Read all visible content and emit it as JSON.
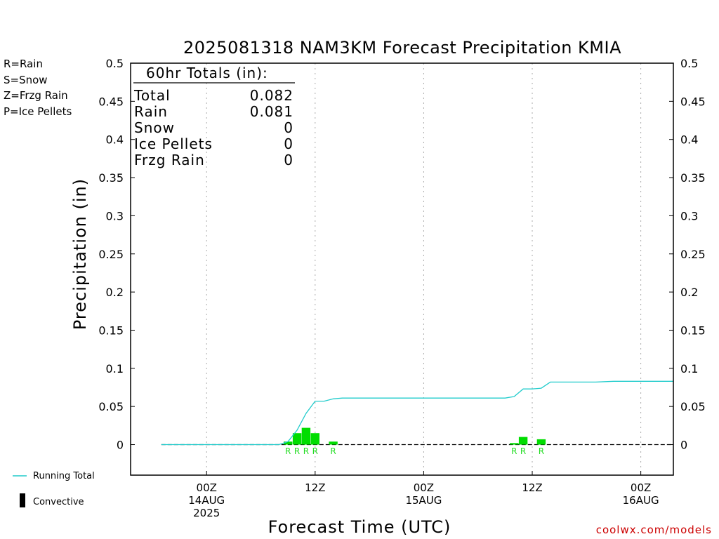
{
  "title": "2025081318 NAM3KM Forecast Precipitation KMIA",
  "credit": "coolwx.com/models",
  "ptype_legend": [
    {
      "code": "R",
      "label": "R=Rain",
      "color": "#22dd22"
    },
    {
      "code": "S",
      "label": "S=Snow",
      "color": "#3355ee"
    },
    {
      "code": "Z",
      "label": "Z=Frzg Rain",
      "color": "#ee8833"
    },
    {
      "code": "P",
      "label": "P=Ice Pellets",
      "color": "#ee1188"
    }
  ],
  "bottom_legend": {
    "running_total": "Running Total",
    "convective": "Convective",
    "running_total_color": "#22cccc",
    "bar_color": "#00dd00"
  },
  "totals_box": {
    "header": "60hr Totals (in):",
    "rows": [
      {
        "label": "Total",
        "value": "0.082"
      },
      {
        "label": "Rain",
        "value": "0.081"
      },
      {
        "label": "Snow",
        "value": "0"
      },
      {
        "label": "Ice Pellets",
        "value": "0"
      },
      {
        "label": "Frzg Rain",
        "value": "0"
      }
    ]
  },
  "chart_data": {
    "type": "bar",
    "ylabel": "Precipitation (in)",
    "xlabel": "Forecast Time (UTC)",
    "ylim": [
      -0.04,
      0.5
    ],
    "xlim_hours": [
      -8.4,
      51.6
    ],
    "yticks": [
      "0",
      "0.05",
      "0.1",
      "0.15",
      "0.2",
      "0.25",
      "0.3",
      "0.35",
      "0.4",
      "0.45",
      "0.5"
    ],
    "x_ticks": [
      {
        "hour": 0,
        "lines": [
          "00Z",
          "14AUG",
          "2025"
        ]
      },
      {
        "hour": 12,
        "lines": [
          "12Z"
        ]
      },
      {
        "hour": 24,
        "lines": [
          "00Z",
          "15AUG"
        ]
      },
      {
        "hour": 36,
        "lines": [
          "12Z"
        ]
      },
      {
        "hour": 48,
        "lines": [
          "00Z",
          "16AUG"
        ]
      }
    ],
    "grid_x": true,
    "series": [
      {
        "name": "Running Total",
        "kind": "line",
        "x": [
          -5,
          8,
          9,
          10,
          11,
          12,
          13,
          14,
          15,
          33,
          34,
          35,
          36,
          37,
          38,
          39,
          40,
          43,
          45,
          48,
          51.6
        ],
        "y": [
          0,
          0,
          0.004,
          0.019,
          0.041,
          0.057,
          0.057,
          0.06,
          0.061,
          0.061,
          0.063,
          0.073,
          0.073,
          0.074,
          0.082,
          0.082,
          0.082,
          0.082,
          0.083,
          0.083,
          0.083
        ]
      },
      {
        "name": "Convective",
        "kind": "bars",
        "x": [
          9,
          10,
          11,
          12,
          14,
          34,
          35,
          37
        ],
        "y": [
          0.004,
          0.015,
          0.022,
          0.015,
          0.004,
          0.002,
          0.01,
          0.007
        ],
        "ptype": [
          "R",
          "R",
          "R",
          "R",
          "R",
          "R",
          "R",
          "R"
        ]
      }
    ]
  }
}
